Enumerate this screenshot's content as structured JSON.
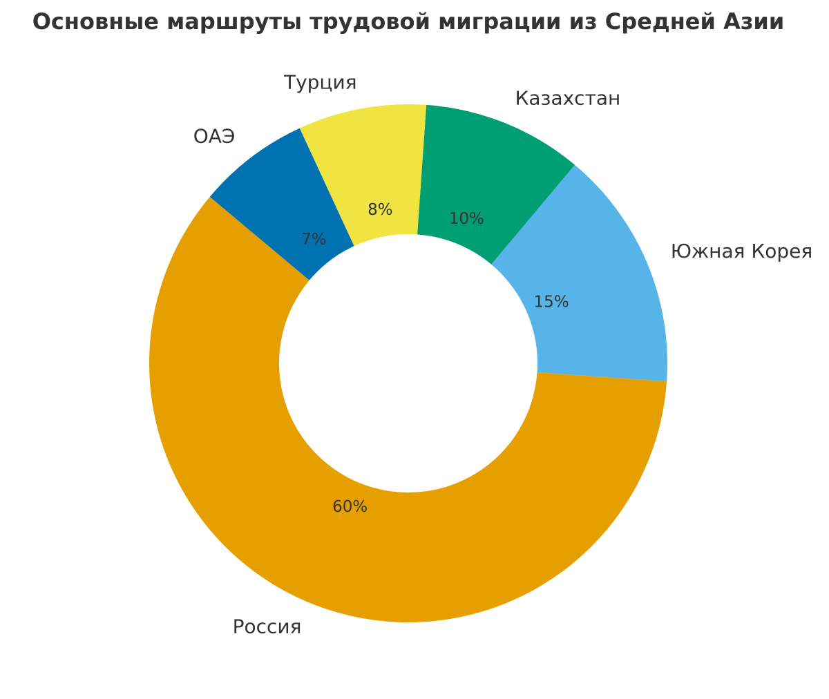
{
  "chart_data": {
    "type": "pie",
    "title": "Основные маршруты трудовой миграции из Средней Азии",
    "categories": [
      "Россия",
      "Южная Корея",
      "Казахстан",
      "Турция",
      "ОАЭ"
    ],
    "values": [
      60,
      15,
      10,
      8,
      7
    ],
    "value_labels": [
      "60%",
      "15%",
      "10%",
      "8%",
      "7%"
    ],
    "colors": [
      "#E69F00",
      "#56B4E9",
      "#009E73",
      "#F0E442",
      "#0072B2"
    ]
  }
}
